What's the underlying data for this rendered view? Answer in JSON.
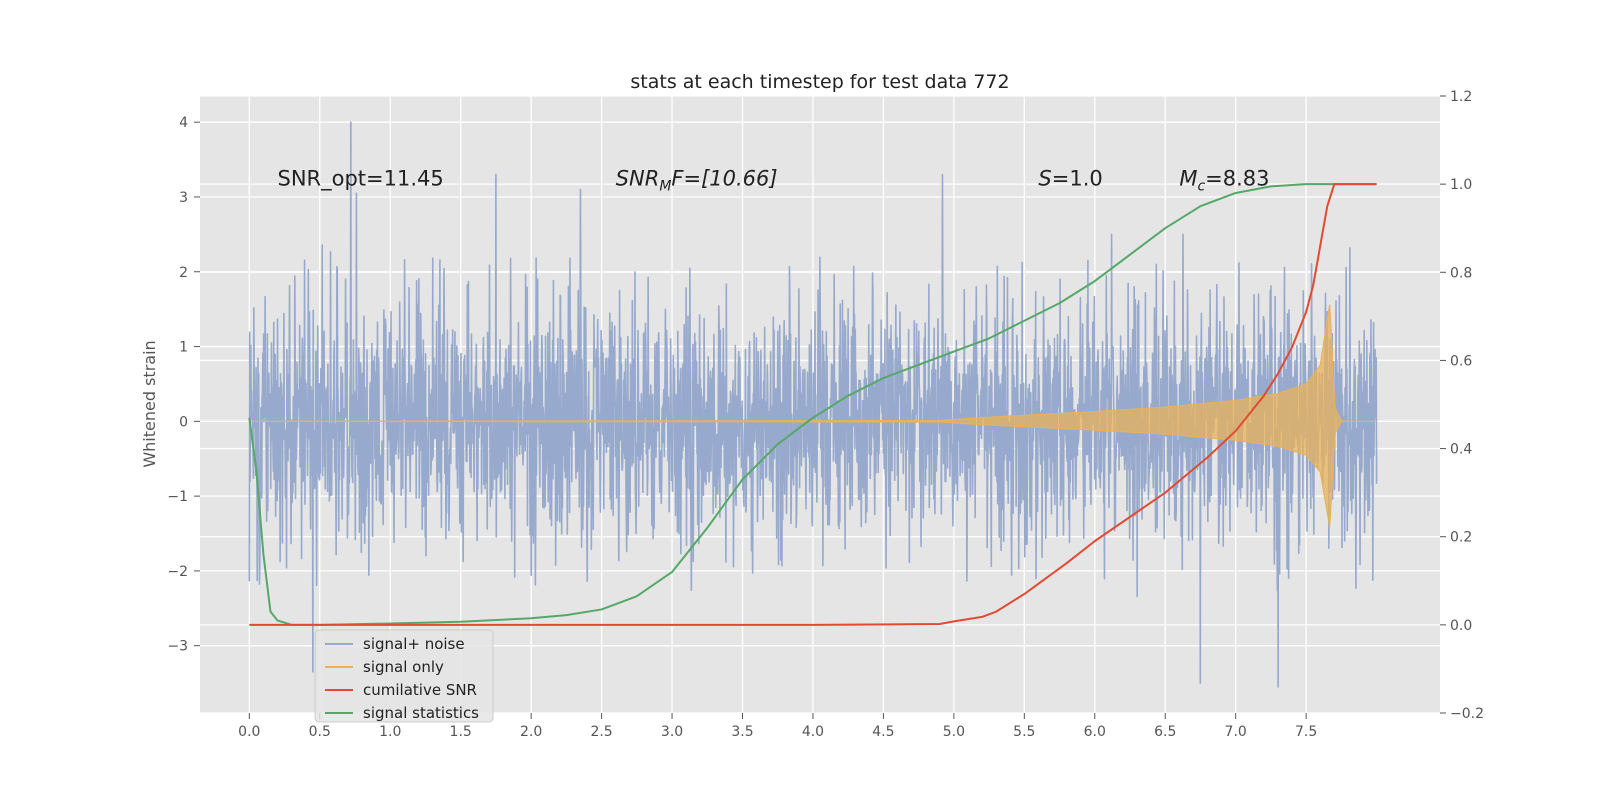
{
  "chart_data": {
    "type": "line",
    "title": "stats at each timestep for test data 772",
    "xlabel": "",
    "ylabel_left": "Whitened strain",
    "ylabel_right": "",
    "xlim": [
      -0.35,
      8.45
    ],
    "ylim_left": [
      -3.9,
      4.35
    ],
    "ylim_right": [
      -0.2,
      1.2
    ],
    "x_ticks": [
      "0.0",
      "0.5",
      "1.0",
      "1.5",
      "2.0",
      "2.5",
      "3.0",
      "3.5",
      "4.0",
      "4.5",
      "5.0",
      "5.5",
      "6.0",
      "6.5",
      "7.0",
      "7.5"
    ],
    "y_ticks_left": [
      "4",
      "3",
      "2",
      "1",
      "0",
      "−1",
      "−2",
      "−3"
    ],
    "y_ticks_right": [
      "1.2",
      "1.0",
      "0.8",
      "0.6",
      "0.4",
      "0.2",
      "0.0",
      "−0.2"
    ],
    "grid": true,
    "legend_position": "lower-left",
    "annotations": [
      {
        "id": "snr-opt",
        "text": "SNR_opt=11.45",
        "x": 0.2,
        "y": 3.25
      },
      {
        "id": "snr-mf",
        "math": true,
        "base": "SNR",
        "sub": "M",
        "rest": "F=[10.66]",
        "x": 2.6,
        "y": 3.25
      },
      {
        "id": "s-value",
        "math": true,
        "base": "S",
        "sub": "",
        "rest": "=1.0",
        "x": 5.6,
        "y": 3.25
      },
      {
        "id": "mc-value",
        "math": true,
        "base": "M",
        "sub": "c",
        "rest": "=8.83",
        "x": 6.6,
        "y": 3.25
      }
    ],
    "series": [
      {
        "name": "signal+ noise",
        "axis": "left",
        "color": "#97a9cc",
        "x_range": [
          0.0,
          8.0
        ],
        "envelope": {
          "core_amplitude": 1.0,
          "spike_max": 2.5,
          "spike_min": -3.5
        },
        "notable_peaks": [
          {
            "x": 0.72,
            "y": 4.0
          },
          {
            "x": 0.76,
            "y": 3.05
          },
          {
            "x": 1.75,
            "y": 3.3
          },
          {
            "x": 2.35,
            "y": 3.1
          },
          {
            "x": 4.92,
            "y": 3.3
          },
          {
            "x": 0.45,
            "y": -3.35
          },
          {
            "x": 1.75,
            "y": -3.1
          },
          {
            "x": 6.75,
            "y": -3.5
          },
          {
            "x": 7.3,
            "y": -3.55
          }
        ]
      },
      {
        "name": "signal only",
        "axis": "left",
        "color": "#e8b25a",
        "chirp": {
          "start": 0.0,
          "merger": 7.67,
          "end": 8.0,
          "envelope": [
            [
              0.0,
              0.0
            ],
            [
              4.9,
              0.01
            ],
            [
              5.2,
              0.05
            ],
            [
              5.5,
              0.08
            ],
            [
              6.0,
              0.13
            ],
            [
              6.5,
              0.19
            ],
            [
              7.0,
              0.28
            ],
            [
              7.3,
              0.37
            ],
            [
              7.5,
              0.5
            ],
            [
              7.6,
              0.75
            ],
            [
              7.67,
              1.6
            ],
            [
              7.7,
              0.2
            ],
            [
              7.75,
              0.0
            ],
            [
              8.0,
              0.0
            ]
          ]
        }
      },
      {
        "name": "cumilative SNR",
        "axis": "right",
        "color": "#e24a33",
        "x": [
          0.0,
          1.0,
          2.0,
          3.0,
          4.0,
          4.9,
          5.0,
          5.2,
          5.3,
          5.5,
          5.8,
          6.0,
          6.5,
          6.8,
          7.0,
          7.2,
          7.3,
          7.4,
          7.5,
          7.55,
          7.6,
          7.65,
          7.7,
          8.0
        ],
        "y": [
          0.0,
          0.0,
          0.0,
          0.0,
          0.0,
          0.002,
          0.008,
          0.018,
          0.03,
          0.07,
          0.14,
          0.19,
          0.3,
          0.38,
          0.44,
          0.52,
          0.57,
          0.63,
          0.71,
          0.77,
          0.86,
          0.95,
          1.0,
          1.0
        ]
      },
      {
        "name": "signal statistics",
        "axis": "right",
        "color": "#55a868",
        "x": [
          0.0,
          0.05,
          0.1,
          0.15,
          0.2,
          0.3,
          0.5,
          1.0,
          1.5,
          2.0,
          2.25,
          2.5,
          2.75,
          3.0,
          3.25,
          3.5,
          3.75,
          4.0,
          4.25,
          4.5,
          4.75,
          5.0,
          5.25,
          5.5,
          5.75,
          6.0,
          6.25,
          6.5,
          6.75,
          7.0,
          7.25,
          7.5,
          7.75,
          8.0
        ],
        "y": [
          0.47,
          0.35,
          0.16,
          0.03,
          0.01,
          0.0,
          0.0,
          0.003,
          0.007,
          0.015,
          0.022,
          0.035,
          0.065,
          0.12,
          0.22,
          0.33,
          0.41,
          0.47,
          0.52,
          0.56,
          0.59,
          0.62,
          0.65,
          0.69,
          0.73,
          0.78,
          0.84,
          0.9,
          0.95,
          0.98,
          0.995,
          1.0,
          1.0,
          1.0
        ]
      }
    ]
  }
}
